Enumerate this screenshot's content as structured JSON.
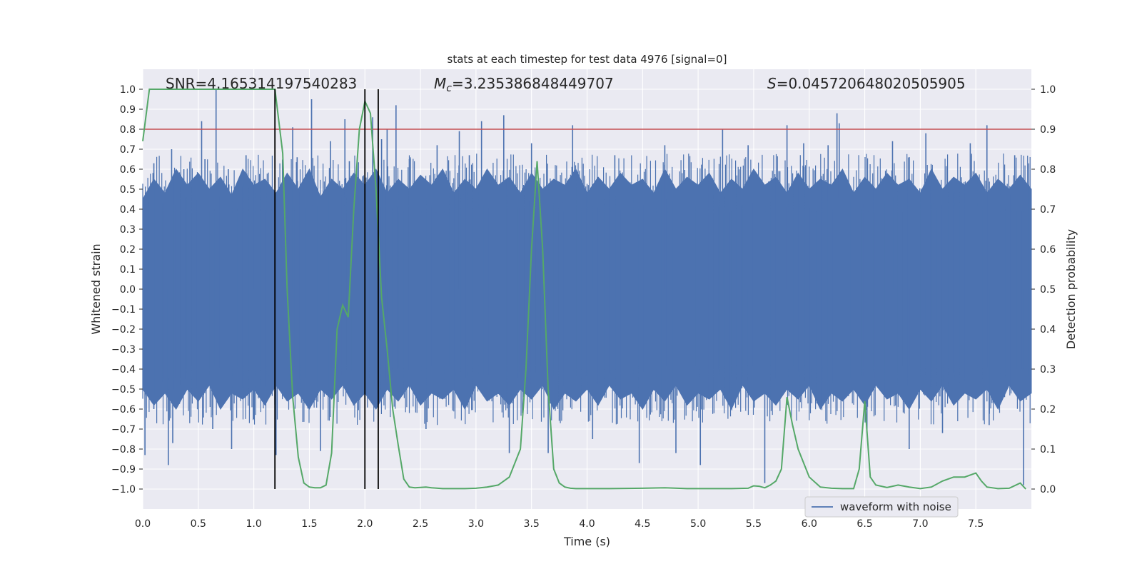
{
  "chart_data": {
    "type": "line",
    "title": "stats at each timestep for test data 4976 [signal=0]",
    "xlabel": "Time (s)",
    "ylabel": "Whitened strain",
    "y2label": "Detection probability",
    "xlim": [
      0,
      8
    ],
    "ylim": [
      -1.1,
      1.1
    ],
    "y2lim": [
      -0.05,
      1.05
    ],
    "x_ticks": [
      0.0,
      0.5,
      1.0,
      1.5,
      2.0,
      2.5,
      3.0,
      3.5,
      4.0,
      4.5,
      5.0,
      5.5,
      6.0,
      6.5,
      7.0,
      7.5
    ],
    "x_tick_labels": [
      "0.0",
      "0.5",
      "1.0",
      "1.5",
      "2.0",
      "2.5",
      "3.0",
      "3.5",
      "4.0",
      "4.5",
      "5.0",
      "5.5",
      "6.0",
      "6.5",
      "7.0",
      "7.5"
    ],
    "y_ticks": [
      1.0,
      0.9,
      0.8,
      0.7,
      0.6,
      0.5,
      0.4,
      0.3,
      0.2,
      0.1,
      0.0,
      -0.1,
      -0.2,
      -0.3,
      -0.4,
      -0.5,
      -0.6,
      -0.7,
      -0.8,
      -0.9,
      -1.0
    ],
    "y_tick_labels": [
      "1.0",
      "0.9",
      "0.8",
      "0.7",
      "0.6",
      "0.5",
      "0.4",
      "0.3",
      "0.2",
      "0.1",
      "0.0",
      "−0.1",
      "−0.2",
      "−0.3",
      "−0.4",
      "−0.5",
      "−0.6",
      "−0.7",
      "−0.8",
      "−0.9",
      "−1.0"
    ],
    "y2_ticks": [
      1.0,
      0.9,
      0.8,
      0.7,
      0.6,
      0.5,
      0.4,
      0.3,
      0.2,
      0.1,
      0.0
    ],
    "y2_tick_labels": [
      "1.0",
      "0.9",
      "0.8",
      "0.7",
      "0.6",
      "0.5",
      "0.4",
      "0.3",
      "0.2",
      "0.1",
      "0.0"
    ],
    "grid": true,
    "legend_position": "bottom-right",
    "annotations": {
      "snr": "SNR=4.165314197540283",
      "mc_symbol": "M",
      "mc_sub": "c",
      "mc_value": "=3.235386848449707",
      "s_symbol": "S",
      "s_value": "=0.045720648020505905"
    },
    "threshold": {
      "axis": "right",
      "value": 0.9,
      "color": "#c44e52"
    },
    "vertical_lines": {
      "x": [
        1.19,
        2.0,
        2.12
      ],
      "ymin": -1.0,
      "ymax": 1.0,
      "color": "#000000"
    },
    "series": [
      {
        "name": "waveform with noise",
        "axis": "left",
        "color": "#4c72b0",
        "envelope": {
          "x": [
            0.0,
            0.1,
            0.2,
            0.3,
            0.4,
            0.5,
            0.6,
            0.7,
            0.8,
            0.9,
            1.0,
            1.1,
            1.2,
            1.3,
            1.4,
            1.5,
            1.6,
            1.7,
            1.8,
            1.9,
            2.0,
            2.1,
            2.2,
            2.3,
            2.4,
            2.5,
            2.6,
            2.7,
            2.8,
            2.9,
            3.0,
            3.1,
            3.2,
            3.3,
            3.4,
            3.5,
            3.6,
            3.7,
            3.8,
            3.9,
            4.0,
            4.1,
            4.2,
            4.3,
            4.4,
            4.5,
            4.6,
            4.7,
            4.8,
            4.9,
            5.0,
            5.1,
            5.2,
            5.3,
            5.4,
            5.5,
            5.6,
            5.7,
            5.8,
            5.9,
            6.0,
            6.1,
            6.2,
            6.3,
            6.4,
            6.5,
            6.6,
            6.7,
            6.8,
            6.9,
            7.0,
            7.1,
            7.2,
            7.3,
            7.4,
            7.5,
            7.6,
            7.7,
            7.8,
            7.9,
            8.0
          ],
          "upper": [
            0.45,
            0.55,
            0.48,
            0.6,
            0.52,
            0.58,
            0.5,
            0.56,
            0.47,
            0.6,
            0.52,
            0.55,
            0.48,
            0.58,
            0.5,
            0.6,
            0.46,
            0.55,
            0.5,
            0.58,
            0.52,
            0.6,
            0.48,
            0.55,
            0.5,
            0.57,
            0.52,
            0.6,
            0.48,
            0.55,
            0.5,
            0.6,
            0.52,
            0.56,
            0.48,
            0.58,
            0.5,
            0.55,
            0.52,
            0.6,
            0.48,
            0.56,
            0.5,
            0.58,
            0.52,
            0.55,
            0.48,
            0.6,
            0.5,
            0.56,
            0.52,
            0.58,
            0.48,
            0.55,
            0.5,
            0.6,
            0.52,
            0.56,
            0.48,
            0.58,
            0.5,
            0.55,
            0.52,
            0.6,
            0.48,
            0.56,
            0.5,
            0.58,
            0.52,
            0.55,
            0.48,
            0.6,
            0.5,
            0.56,
            0.52,
            0.58,
            0.48,
            0.55,
            0.5,
            0.57,
            0.5
          ],
          "lower": [
            -0.5,
            -0.58,
            -0.52,
            -0.6,
            -0.5,
            -0.56,
            -0.48,
            -0.6,
            -0.52,
            -0.55,
            -0.5,
            -0.58,
            -0.48,
            -0.56,
            -0.52,
            -0.6,
            -0.5,
            -0.55,
            -0.48,
            -0.58,
            -0.52,
            -0.6,
            -0.5,
            -0.56,
            -0.48,
            -0.58,
            -0.52,
            -0.55,
            -0.5,
            -0.6,
            -0.48,
            -0.56,
            -0.52,
            -0.58,
            -0.5,
            -0.55,
            -0.48,
            -0.6,
            -0.52,
            -0.56,
            -0.5,
            -0.58,
            -0.48,
            -0.55,
            -0.52,
            -0.6,
            -0.5,
            -0.56,
            -0.48,
            -0.58,
            -0.52,
            -0.55,
            -0.5,
            -0.6,
            -0.48,
            -0.56,
            -0.52,
            -0.58,
            -0.5,
            -0.55,
            -0.48,
            -0.6,
            -0.52,
            -0.56,
            -0.5,
            -0.58,
            -0.48,
            -0.55,
            -0.52,
            -0.6,
            -0.5,
            -0.56,
            -0.48,
            -0.58,
            -0.52,
            -0.55,
            -0.5,
            -0.6,
            -0.48,
            -0.56,
            -0.52
          ]
        },
        "spikes": [
          {
            "x": 0.02,
            "y": -0.83
          },
          {
            "x": 0.06,
            "y": 0.5
          },
          {
            "x": 0.1,
            "y": 0.63
          },
          {
            "x": 0.1,
            "y": -0.6
          },
          {
            "x": 0.23,
            "y": -0.88
          },
          {
            "x": 0.27,
            "y": -0.77
          },
          {
            "x": 0.26,
            "y": 0.7
          },
          {
            "x": 0.37,
            "y": 0.6
          },
          {
            "x": 0.53,
            "y": 0.84
          },
          {
            "x": 0.56,
            "y": 0.65
          },
          {
            "x": 0.66,
            "y": 1.0
          },
          {
            "x": 0.63,
            "y": -0.7
          },
          {
            "x": 0.77,
            "y": 0.6
          },
          {
            "x": 0.8,
            "y": -0.8
          },
          {
            "x": 0.93,
            "y": 0.67
          },
          {
            "x": 1.0,
            "y": -0.65
          },
          {
            "x": 1.2,
            "y": -0.83
          },
          {
            "x": 1.35,
            "y": 0.81
          },
          {
            "x": 1.39,
            "y": 0.66
          },
          {
            "x": 1.52,
            "y": 0.95
          },
          {
            "x": 1.6,
            "y": -0.81
          },
          {
            "x": 1.69,
            "y": 0.74
          },
          {
            "x": 1.82,
            "y": 0.85
          },
          {
            "x": 1.86,
            "y": 0.64
          },
          {
            "x": 2.07,
            "y": 0.86
          },
          {
            "x": 2.15,
            "y": 0.75
          },
          {
            "x": 2.2,
            "y": 0.8
          },
          {
            "x": 2.28,
            "y": 0.92
          },
          {
            "x": 2.4,
            "y": 0.65
          },
          {
            "x": 2.55,
            "y": -0.7
          },
          {
            "x": 2.65,
            "y": 0.72
          },
          {
            "x": 2.85,
            "y": 0.79
          },
          {
            "x": 2.94,
            "y": 0.67
          },
          {
            "x": 3.05,
            "y": 0.84
          },
          {
            "x": 3.25,
            "y": 0.87
          },
          {
            "x": 3.3,
            "y": -0.82
          },
          {
            "x": 3.5,
            "y": 0.73
          },
          {
            "x": 3.65,
            "y": -0.82
          },
          {
            "x": 3.87,
            "y": 0.82
          },
          {
            "x": 4.05,
            "y": -0.75
          },
          {
            "x": 4.25,
            "y": 0.67
          },
          {
            "x": 4.47,
            "y": -0.87
          },
          {
            "x": 4.7,
            "y": 0.72
          },
          {
            "x": 4.8,
            "y": -0.82
          },
          {
            "x": 5.02,
            "y": -0.88
          },
          {
            "x": 5.22,
            "y": 0.8
          },
          {
            "x": 5.45,
            "y": 0.72
          },
          {
            "x": 5.6,
            "y": -0.97
          },
          {
            "x": 5.8,
            "y": 0.82
          },
          {
            "x": 5.95,
            "y": 0.73
          },
          {
            "x": 6.17,
            "y": 0.72
          },
          {
            "x": 6.25,
            "y": 0.88
          },
          {
            "x": 6.27,
            "y": 0.83
          },
          {
            "x": 6.52,
            "y": -0.72
          },
          {
            "x": 6.75,
            "y": 0.74
          },
          {
            "x": 6.9,
            "y": -0.8
          },
          {
            "x": 7.05,
            "y": 0.78
          },
          {
            "x": 7.2,
            "y": -0.72
          },
          {
            "x": 7.45,
            "y": 0.73
          },
          {
            "x": 7.6,
            "y": 0.82
          },
          {
            "x": 7.62,
            "y": -0.68
          },
          {
            "x": 7.85,
            "y": 0.67
          },
          {
            "x": 7.93,
            "y": -0.98
          }
        ]
      },
      {
        "axis": "right",
        "color": "#55a868",
        "x": [
          0.0,
          0.06,
          0.1,
          0.2,
          0.4,
          0.6,
          0.8,
          1.0,
          1.1,
          1.19,
          1.26,
          1.3,
          1.35,
          1.4,
          1.45,
          1.5,
          1.55,
          1.6,
          1.65,
          1.7,
          1.75,
          1.8,
          1.85,
          1.9,
          1.95,
          2.0,
          2.05,
          2.1,
          2.15,
          2.2,
          2.25,
          2.3,
          2.35,
          2.4,
          2.45,
          2.5,
          2.55,
          2.6,
          2.7,
          2.8,
          2.9,
          3.0,
          3.1,
          3.2,
          3.3,
          3.4,
          3.45,
          3.5,
          3.55,
          3.6,
          3.65,
          3.7,
          3.75,
          3.8,
          3.85,
          3.9,
          4.0,
          4.2,
          4.5,
          4.7,
          4.9,
          5.0,
          5.1,
          5.3,
          5.45,
          5.5,
          5.55,
          5.6,
          5.65,
          5.7,
          5.75,
          5.8,
          5.85,
          5.9,
          6.0,
          6.1,
          6.2,
          6.3,
          6.4,
          6.45,
          6.5,
          6.55,
          6.6,
          6.7,
          6.8,
          6.9,
          7.0,
          7.1,
          7.2,
          7.3,
          7.4,
          7.5,
          7.55,
          7.6,
          7.7,
          7.8,
          7.9,
          7.95
        ],
        "y": [
          0.87,
          1.0,
          1.0,
          1.0,
          1.0,
          1.0,
          1.0,
          1.0,
          1.0,
          1.0,
          0.84,
          0.5,
          0.23,
          0.08,
          0.015,
          0.005,
          0.003,
          0.003,
          0.01,
          0.09,
          0.4,
          0.46,
          0.43,
          0.7,
          0.9,
          0.97,
          0.94,
          0.75,
          0.48,
          0.35,
          0.2,
          0.11,
          0.025,
          0.005,
          0.003,
          0.004,
          0.005,
          0.003,
          0.001,
          0.001,
          0.001,
          0.002,
          0.005,
          0.01,
          0.03,
          0.1,
          0.3,
          0.6,
          0.82,
          0.6,
          0.25,
          0.05,
          0.015,
          0.005,
          0.002,
          0.001,
          0.001,
          0.001,
          0.002,
          0.003,
          0.001,
          0.001,
          0.001,
          0.001,
          0.002,
          0.008,
          0.007,
          0.003,
          0.01,
          0.02,
          0.05,
          0.23,
          0.16,
          0.1,
          0.03,
          0.005,
          0.002,
          0.001,
          0.001,
          0.05,
          0.22,
          0.03,
          0.01,
          0.004,
          0.01,
          0.005,
          0.001,
          0.005,
          0.02,
          0.03,
          0.03,
          0.04,
          0.02,
          0.005,
          0.001,
          0.002,
          0.015,
          0.0
        ]
      }
    ]
  }
}
